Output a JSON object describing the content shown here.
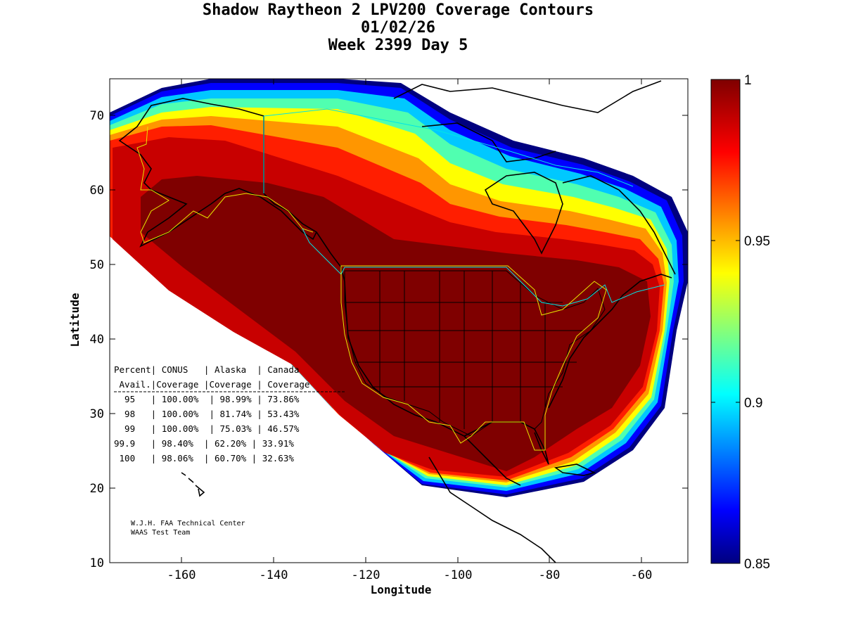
{
  "title": {
    "line1": "Shadow Raytheon 2 LPV200 Coverage Contours",
    "line2": "01/02/26",
    "line3": "Week 2399 Day 5"
  },
  "axes": {
    "xlabel": "Longitude",
    "ylabel": "Latitude",
    "xticks": [
      "-160",
      "-140",
      "-120",
      "-100",
      "-80",
      "-60"
    ],
    "yticks": [
      "10",
      "20",
      "30",
      "40",
      "50",
      "60",
      "70"
    ]
  },
  "colorbar": {
    "ticks": [
      "1",
      "0.95",
      "0.9",
      "0.85"
    ],
    "min": 0.85,
    "max": 1.0
  },
  "table": {
    "header1": "Percent| CONUS   | Alaska  | Canada",
    "header2": " Avail.|Coverage |Coverage | Coverage",
    "rows": [
      "  95   | 100.00%  | 98.99% | 73.86%",
      "  98   | 100.00%  | 81.74% | 53.43%",
      "  99   | 100.00%  | 75.03% | 46.57%",
      "99.9   | 98.40%  | 62.20% | 33.91%",
      " 100   | 98.06%  | 60.70% | 32.63%"
    ]
  },
  "credit": {
    "line1": "W.J.H. FAA Technical Center",
    "line2": "WAAS Test Team"
  },
  "chart_data": {
    "type": "heatmap",
    "title": "Shadow Raytheon 2 LPV200 Coverage Contours",
    "xlabel": "Longitude",
    "ylabel": "Latitude",
    "xlim": [
      -175,
      -50
    ],
    "ylim": [
      10,
      75
    ],
    "colorbar_range": [
      0.85,
      1.0
    ],
    "colormap": "jet"
  }
}
